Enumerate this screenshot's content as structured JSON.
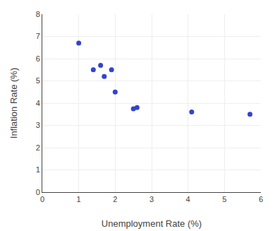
{
  "chart_data": {
    "type": "scatter",
    "xlabel": "Unemployment Rate (%)",
    "ylabel": "Inflation Rate (%)",
    "x": [
      1.0,
      1.4,
      1.6,
      1.7,
      1.9,
      2.0,
      2.5,
      2.6,
      4.1,
      5.7
    ],
    "values": [
      6.7,
      5.5,
      5.7,
      5.2,
      5.5,
      4.5,
      3.75,
      3.8,
      3.6,
      3.5
    ],
    "color": "#3344cc",
    "xlim": [
      0,
      6
    ],
    "xticks": [
      0,
      1,
      2,
      3,
      4,
      5,
      6
    ],
    "ylim": [
      0,
      8
    ],
    "yticks": [
      0,
      1,
      2,
      3,
      4,
      5,
      6,
      7,
      8
    ],
    "grid": true
  }
}
